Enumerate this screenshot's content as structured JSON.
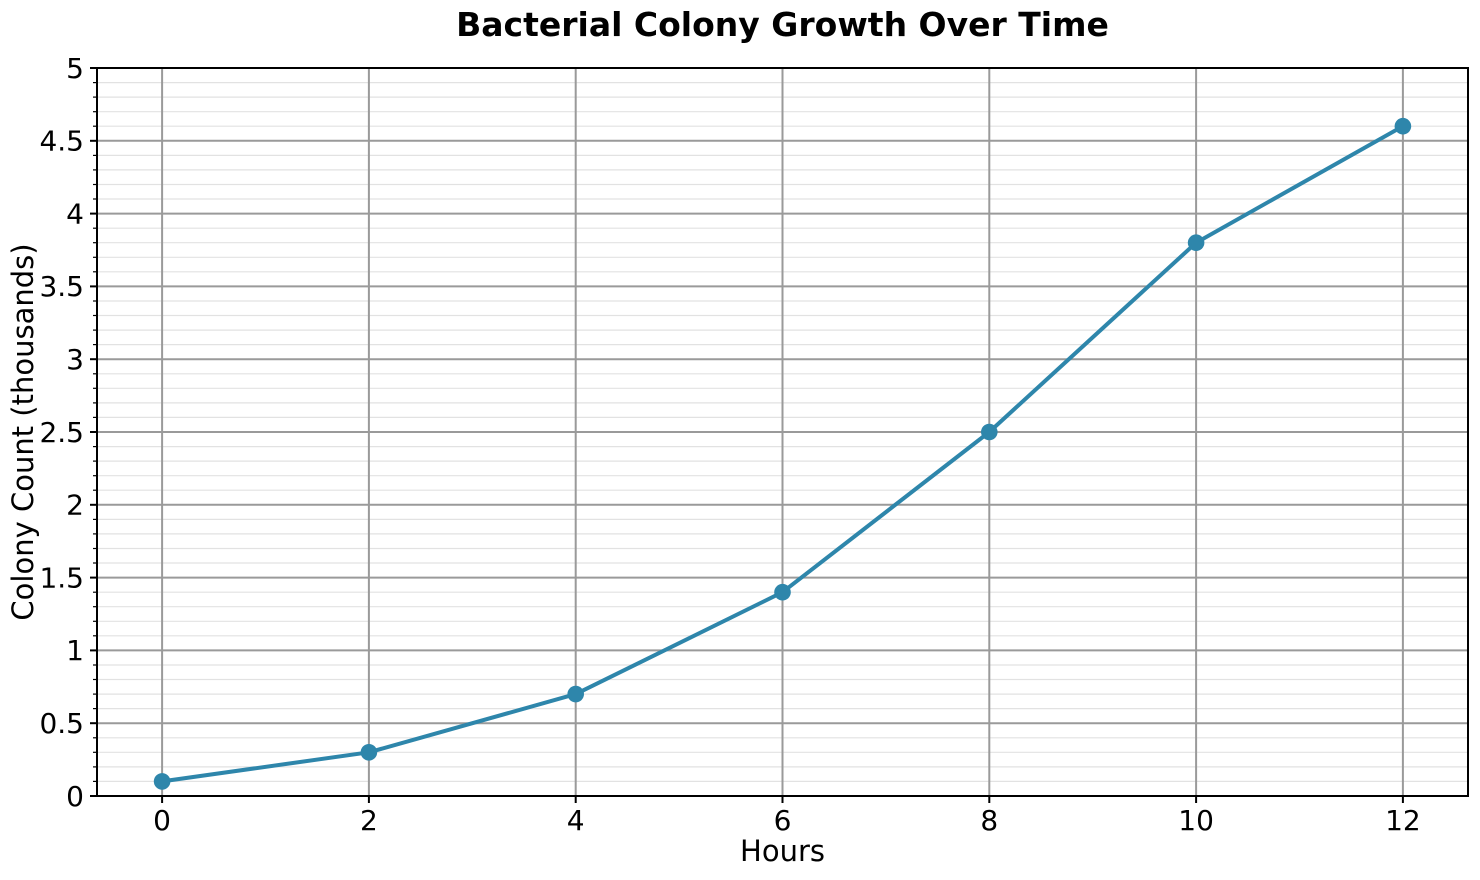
{
  "chart_data": {
    "type": "line",
    "title": "Bacterial Colony Growth Over Time",
    "xlabel": "Hours",
    "ylabel": "Colony Count (thousands)",
    "series": [
      {
        "name": "colony-count",
        "x": [
          0,
          2,
          4,
          6,
          8,
          10,
          12
        ],
        "y": [
          0.1,
          0.3,
          0.7,
          1.4,
          2.5,
          3.8,
          4.6
        ]
      }
    ],
    "xlim": [
      -0.63,
      12.63
    ],
    "ylim": [
      0,
      5
    ],
    "x_ticks": [
      0,
      2,
      4,
      6,
      8,
      10,
      12
    ],
    "x_tick_labels": [
      "0",
      "2",
      "4",
      "6",
      "8",
      "10",
      "12"
    ],
    "y_ticks": [
      0,
      0.5,
      1,
      1.5,
      2,
      2.5,
      3,
      3.5,
      4,
      4.5,
      5
    ],
    "y_tick_labels": [
      "0",
      "0.5",
      "1",
      "1.5",
      "2",
      "2.5",
      "3",
      "3.5",
      "4",
      "4.5",
      "5"
    ],
    "y_minor_step": 0.1,
    "grid": {
      "major": true,
      "minor_horizontal": true,
      "minor_vertical": false
    },
    "legend": "none",
    "colors": {
      "line": "#2E86AB",
      "marker": "#2E86AB",
      "grid_major": "#9a9a9a",
      "grid_minor": "#e2e2e2",
      "spine": "#000000",
      "text": "#000000",
      "background": "#ffffff"
    }
  }
}
